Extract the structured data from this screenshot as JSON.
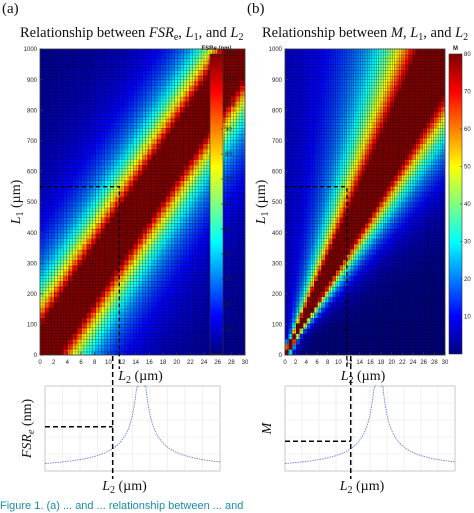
{
  "caption_fragment": "Figure 1. (a) ... and ... relationship between ... and",
  "colors": {
    "jet": [
      "#00007f",
      "#0000ff",
      "#007fff",
      "#00ffff",
      "#7fff7f",
      "#ffff00",
      "#ff7f00",
      "#ff0000",
      "#7f0000"
    ],
    "curve": "#6a7fd6",
    "dash": "#000000"
  },
  "chart_data": [
    {
      "id": "a",
      "type": "heatmap",
      "panel_label": "(a)",
      "title": "Relationship between FSRe, L1, and L2",
      "title_parts": [
        "Relationship between ",
        "FSR",
        "e",
        ", ",
        "L",
        "1",
        ", and ",
        "L",
        "2"
      ],
      "xlabel": "L2 (µm)",
      "ylabel": "L1 (µm)",
      "xlim": [
        0,
        30
      ],
      "ylim": [
        0,
        1000
      ],
      "xticks": [
        "0",
        "2",
        "4",
        "6",
        "8",
        "10",
        "12",
        "14",
        "16",
        "18",
        "20",
        "22",
        "24",
        "26",
        "28",
        "30"
      ],
      "yticks": [
        "0",
        "100",
        "200",
        "300",
        "400",
        "500",
        "600",
        "700",
        "800",
        "900",
        "1000"
      ],
      "colorbar": {
        "label": "FSRe (nm)",
        "range": [
          0,
          120
        ],
        "ticks": [
          "10",
          "20",
          "30",
          "40",
          "50",
          "60",
          "70",
          "80",
          "90",
          "100",
          "110",
          "120"
        ]
      },
      "band_slope_um_per_um": 33.3,
      "band_halfwidth_um": 4.5,
      "dashed_marker": {
        "l2": 11.6,
        "l1": 550
      }
    },
    {
      "id": "b",
      "type": "heatmap",
      "panel_label": "(b)",
      "title": "Relationship between M, L1, and L2",
      "title_parts": [
        "Relationship between ",
        "M",
        "",
        ", ",
        "L",
        "1",
        ", and ",
        "L",
        "2"
      ],
      "xlabel": "L2 (µm)",
      "ylabel": "L1 (µm)",
      "xlim": [
        0,
        30
      ],
      "ylim": [
        0,
        1000
      ],
      "xticks": [
        "0",
        "2",
        "4",
        "6",
        "8",
        "10",
        "12",
        "14",
        "16",
        "18",
        "20",
        "22",
        "24",
        "26",
        "28",
        "30"
      ],
      "yticks": [
        "0",
        "100",
        "200",
        "300",
        "400",
        "500",
        "600",
        "700",
        "800",
        "900",
        "1000"
      ],
      "colorbar": {
        "label": "M",
        "range": [
          0,
          80
        ],
        "ticks": [
          "10",
          "20",
          "30",
          "40",
          "50",
          "60",
          "70",
          "80"
        ]
      },
      "band_slope_um_per_um": 33.3,
      "band_rel_halfwidth": 0.27,
      "dashed_marker": {
        "l2": 11.6,
        "l1": 550
      }
    },
    {
      "id": "c",
      "type": "line",
      "xlabel": "L2 (µm)",
      "ylabel": "FSRe (nm)",
      "resonance_l2": 16.5,
      "dashed_marker": {
        "l2": 11.6,
        "value": 0.52
      }
    },
    {
      "id": "d",
      "type": "line",
      "xlabel": "L2 (µm)",
      "ylabel": "M",
      "resonance_l2": 16.5,
      "dashed_marker": {
        "l2": 11.6,
        "value": 0.35
      }
    }
  ]
}
